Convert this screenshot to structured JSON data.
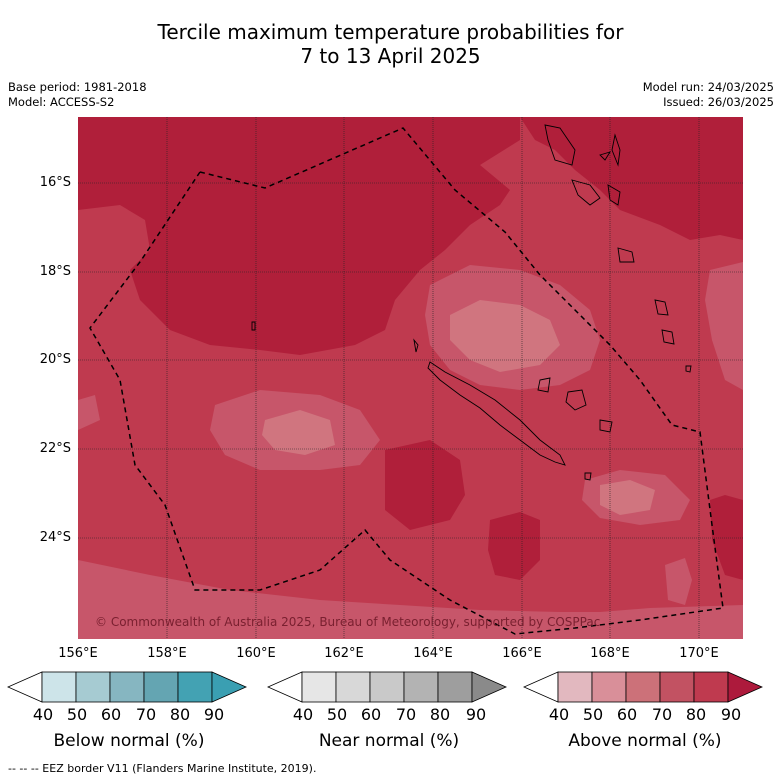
{
  "title": {
    "line1": "Tercile maximum temperature probabilities for",
    "line2": "7 to 13 April 2025"
  },
  "meta": {
    "base_period": "Base period: 1981-2018",
    "model": "Model: ACCESS-S2",
    "model_run": "Model run: 24/03/2025",
    "issued": "Issued: 26/03/2025"
  },
  "map": {
    "lat_labels": [
      "16°S",
      "18°S",
      "20°S",
      "22°S",
      "24°S"
    ],
    "lon_labels": [
      "156°E",
      "158°E",
      "160°E",
      "162°E",
      "164°E",
      "166°E",
      "168°E",
      "170°E"
    ],
    "copyright": "© Commonwealth of Australia 2025, Bureau of Meteorology, supported by COSPPac",
    "colors": {
      "dominant": "#bf3a4f",
      "high": "#b01f3a",
      "medium": "#c7566a",
      "low": "#d0757f"
    }
  },
  "colorbars": [
    {
      "label": "Below normal (%)",
      "ticks": [
        "40",
        "50",
        "60",
        "70",
        "80",
        "90"
      ],
      "colors": [
        "#ffffff",
        "#cde4e9",
        "#a6cbd2",
        "#86b6c1",
        "#64a5b2",
        "#43a2b3",
        "#3a9fb2"
      ]
    },
    {
      "label": "Near normal (%)",
      "ticks": [
        "40",
        "50",
        "60",
        "70",
        "80",
        "90"
      ],
      "colors": [
        "#ffffff",
        "#e6e6e6",
        "#d8d8d8",
        "#c9c9c9",
        "#b3b3b3",
        "#9e9e9e",
        "#8a8a8a"
      ]
    },
    {
      "label": "Above normal (%)",
      "ticks": [
        "40",
        "50",
        "60",
        "70",
        "80",
        "90"
      ],
      "colors": [
        "#ffffff",
        "#e2b8bf",
        "#d98f99",
        "#cc7179",
        "#c25262",
        "#bf3a4f",
        "#ad1a3c"
      ]
    }
  ],
  "footer": "--  --  -- EEZ border V11 (Flanders Marine Institute, 2019)."
}
